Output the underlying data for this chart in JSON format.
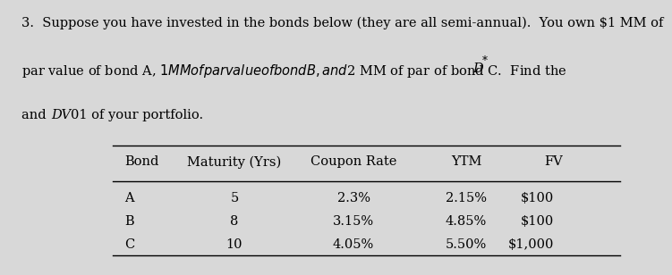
{
  "col_headers": [
    "Bond",
    "Maturity (Yrs)",
    "Coupon Rate",
    "YTM",
    "FV"
  ],
  "rows": [
    [
      "A",
      "5",
      "2.3%",
      "2.15%",
      "$100"
    ],
    [
      "B",
      "8",
      "3.15%",
      "4.85%",
      "$100"
    ],
    [
      "C",
      "10",
      "4.05%",
      "5.50%",
      "$1,000"
    ]
  ],
  "bg_color": "#d8d8d8",
  "text_color": "#000000",
  "font_size_body": 10.5,
  "font_size_table": 10.5,
  "line1": "3.  Suppose you have invested in the bonds below (they are all semi-annual).  You own $1 MM of",
  "line2_pre": "par value of bond A, $1 MM of par value of bond B, and $2 MM of par of bond C.  Find the ",
  "line2_italic": "D",
  "line2_super": "*",
  "line3_pre": "and ",
  "line3_italic": "DV",
  "line3_post": "01 of your portfolio."
}
